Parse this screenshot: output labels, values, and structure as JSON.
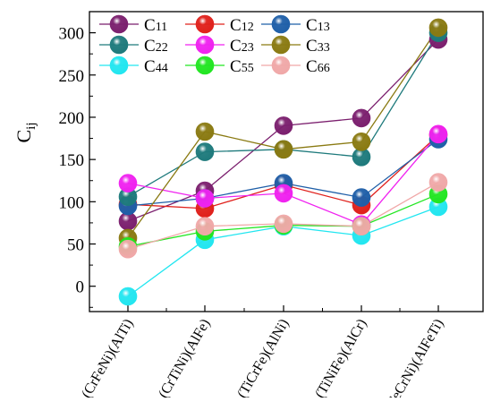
{
  "chart_data": {
    "type": "line",
    "title": "",
    "xlabel": "",
    "ylabel": "C",
    "ylabel_sub": "ij",
    "categories": [
      "(CrFeNi)(AlTi)",
      "(CrTiNi)(AlFe)",
      "(TiCrFe)(AlNi)",
      "(TiNiFe)(AlCr)",
      "(FeCrNi)(AlFeTi)"
    ],
    "ylim": [
      -30,
      325
    ],
    "yticks": [
      0,
      50,
      100,
      150,
      200,
      250,
      300
    ],
    "grid": false,
    "legend_position": "top-left",
    "series": [
      {
        "name": "C",
        "sub": "11",
        "color": "#7b1f6e",
        "values": [
          77,
          113,
          190,
          199,
          292
        ]
      },
      {
        "name": "C",
        "sub": "12",
        "color": "#e0201b",
        "values": [
          97,
          92,
          120,
          96,
          179
        ]
      },
      {
        "name": "C",
        "sub": "13",
        "color": "#1f5fa8",
        "values": [
          95,
          104,
          122,
          105,
          174
        ]
      },
      {
        "name": "C",
        "sub": "22",
        "color": "#1e7a7c",
        "values": [
          106,
          159,
          162,
          153,
          300
        ]
      },
      {
        "name": "C",
        "sub": "23",
        "color": "#f022f0",
        "values": [
          122,
          104,
          110,
          73,
          180
        ]
      },
      {
        "name": "C",
        "sub": "33",
        "color": "#8a7a12",
        "values": [
          57,
          183,
          162,
          171,
          306
        ]
      },
      {
        "name": "C",
        "sub": "44",
        "color": "#22e6f0",
        "values": [
          -12,
          55,
          71,
          60,
          94
        ]
      },
      {
        "name": "C",
        "sub": "55",
        "color": "#22e622",
        "values": [
          47,
          65,
          72,
          71,
          109
        ]
      },
      {
        "name": "C",
        "sub": "66",
        "color": "#f0a8a8",
        "values": [
          44,
          71,
          74,
          71,
          123
        ]
      }
    ]
  }
}
